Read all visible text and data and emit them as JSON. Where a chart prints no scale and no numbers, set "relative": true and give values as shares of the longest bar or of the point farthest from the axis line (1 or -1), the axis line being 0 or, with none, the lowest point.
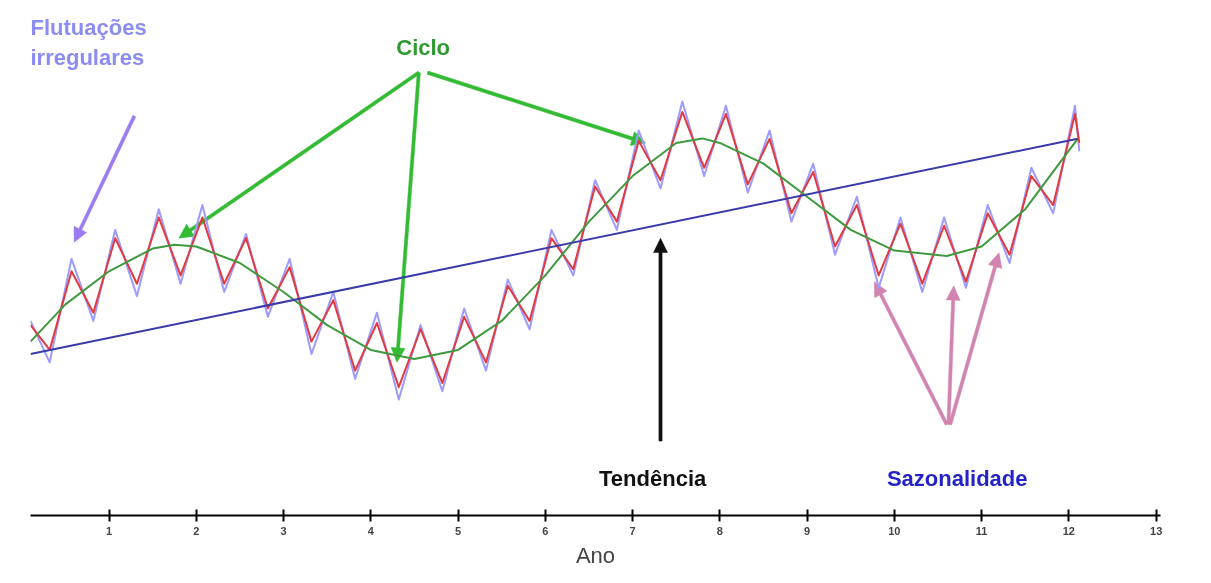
{
  "chart_data": {
    "type": "line",
    "relative": true,
    "xlabel": "Ano",
    "xlim": [
      0.1,
      13.05
    ],
    "xticks": [
      1,
      2,
      3,
      4,
      5,
      6,
      7,
      8,
      9,
      10,
      11,
      12,
      13
    ],
    "tick_labels": "x",
    "grid": false,
    "marker": "none",
    "line_style": "solid",
    "annotations": [
      "Flutuações\nirregulares",
      "Ciclo",
      "Tendência",
      "Sazonalidade"
    ],
    "series": [
      {
        "color": "#9c9cff",
        "x": [
          0.1,
          0.32,
          0.57,
          0.82,
          1.07,
          1.32,
          1.57,
          1.82,
          2.07,
          2.32,
          2.57,
          2.82,
          3.07,
          3.32,
          3.57,
          3.82,
          4.07,
          4.32,
          4.57,
          4.82,
          5.07,
          5.32,
          5.57,
          5.82,
          6.07,
          6.32,
          6.57,
          6.82,
          7.07,
          7.32,
          7.57,
          7.82,
          8.07,
          8.32,
          8.57,
          8.82,
          9.07,
          9.32,
          9.57,
          9.82,
          10.07,
          10.32,
          10.57,
          10.82,
          11.07,
          11.32,
          11.57,
          11.82,
          12.07,
          12.12
        ],
        "values": [
          0.47,
          0.37,
          0.62,
          0.47,
          0.69,
          0.53,
          0.74,
          0.56,
          0.75,
          0.54,
          0.68,
          0.48,
          0.62,
          0.39,
          0.54,
          0.33,
          0.49,
          0.28,
          0.46,
          0.3,
          0.5,
          0.35,
          0.57,
          0.45,
          0.69,
          0.58,
          0.81,
          0.69,
          0.93,
          0.79,
          1.0,
          0.82,
          0.99,
          0.78,
          0.93,
          0.71,
          0.85,
          0.63,
          0.77,
          0.55,
          0.72,
          0.54,
          0.72,
          0.55,
          0.75,
          0.61,
          0.84,
          0.73,
          0.99,
          0.88
        ]
      },
      {
        "color": "#e23a3f",
        "x": [
          0.1,
          0.32,
          0.57,
          0.82,
          1.07,
          1.32,
          1.57,
          1.82,
          2.07,
          2.32,
          2.57,
          2.82,
          3.07,
          3.32,
          3.57,
          3.82,
          4.07,
          4.32,
          4.57,
          4.82,
          5.07,
          5.32,
          5.57,
          5.82,
          6.07,
          6.32,
          6.57,
          6.82,
          7.07,
          7.32,
          7.57,
          7.82,
          8.07,
          8.32,
          8.57,
          8.82,
          9.07,
          9.32,
          9.57,
          9.82,
          10.07,
          10.32,
          10.57,
          10.82,
          11.07,
          11.32,
          11.57,
          11.82,
          12.07,
          12.12
        ],
        "values": [
          0.46,
          0.4,
          0.59,
          0.49,
          0.67,
          0.56,
          0.72,
          0.58,
          0.72,
          0.56,
          0.67,
          0.5,
          0.6,
          0.42,
          0.52,
          0.35,
          0.465,
          0.31,
          0.45,
          0.32,
          0.48,
          0.37,
          0.555,
          0.47,
          0.67,
          0.595,
          0.795,
          0.71,
          0.905,
          0.81,
          0.975,
          0.84,
          0.97,
          0.8,
          0.91,
          0.73,
          0.83,
          0.65,
          0.75,
          0.58,
          0.705,
          0.56,
          0.7,
          0.565,
          0.73,
          0.63,
          0.82,
          0.75,
          0.97,
          0.9
        ]
      },
      {
        "color": "#3f9a3f",
        "x": [
          0.1,
          0.5,
          1.0,
          1.5,
          1.75,
          2.0,
          2.5,
          3.0,
          3.5,
          4.0,
          4.5,
          5.0,
          5.5,
          6.0,
          6.5,
          7.0,
          7.5,
          7.8,
          8.0,
          8.5,
          9.0,
          9.5,
          10.0,
          10.6,
          11.0,
          11.5,
          12.1
        ],
        "values": [
          0.42,
          0.51,
          0.59,
          0.645,
          0.654,
          0.65,
          0.61,
          0.54,
          0.46,
          0.4,
          0.378,
          0.4,
          0.47,
          0.58,
          0.71,
          0.82,
          0.9,
          0.911,
          0.9,
          0.85,
          0.77,
          0.69,
          0.64,
          0.627,
          0.65,
          0.74,
          0.91
        ]
      },
      {
        "color": "#3a3aa8",
        "x": [
          0.1,
          12.1
        ],
        "values": [
          0.39,
          0.91
        ]
      }
    ]
  }
}
